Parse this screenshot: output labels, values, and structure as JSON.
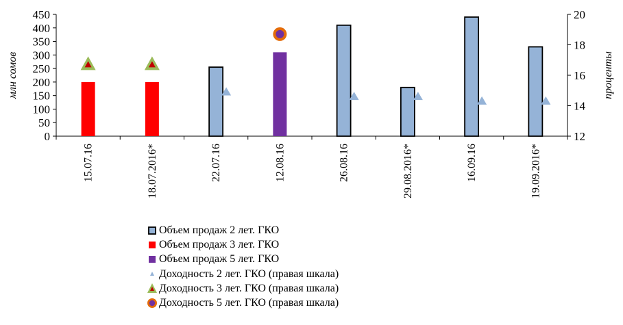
{
  "chart_data": {
    "type": "bar",
    "categories": [
      "15.07.16",
      "18.07.2016*",
      "22.07.16",
      "12.08.16",
      "26.08.16",
      "29.08.2016*",
      "16.09.16",
      "19.09.2016*"
    ],
    "ylabel": "млн  сомов",
    "y2label": "проценты",
    "ylim": [
      0,
      450
    ],
    "y_ticks": [
      0,
      50,
      100,
      150,
      200,
      250,
      300,
      350,
      400,
      450
    ],
    "y2lim": [
      12,
      20
    ],
    "y2_ticks": [
      12,
      14,
      16,
      18,
      20
    ],
    "grid": false,
    "legend_position": "bottom",
    "series": [
      {
        "name": "Объем продаж 2 лет. ГКО",
        "kind": "bar",
        "axis": "left",
        "color": "#95b3d7",
        "values": [
          null,
          null,
          255,
          null,
          410,
          180,
          440,
          330
        ]
      },
      {
        "name": "Объем продаж 3 лет. ГКО",
        "kind": "bar",
        "axis": "left",
        "color": "#ff0000",
        "values": [
          200,
          200,
          null,
          null,
          null,
          null,
          null,
          null
        ]
      },
      {
        "name": "Объем продаж 5 лет. ГКО",
        "kind": "bar",
        "axis": "left",
        "color": "#7030a0",
        "values": [
          null,
          null,
          null,
          310,
          null,
          null,
          null,
          null
        ]
      },
      {
        "name": "Доходность 2 лет. ГКО (правая шкала)",
        "kind": "marker",
        "axis": "right",
        "color": "#95b3d7",
        "values": [
          null,
          null,
          14.9,
          null,
          14.6,
          14.6,
          14.3,
          14.3
        ]
      },
      {
        "name": "Доходность 3 лет. ГКО (правая шкала)",
        "kind": "marker",
        "axis": "right",
        "color": "#c00000",
        "values": [
          16.7,
          16.7,
          null,
          null,
          null,
          null,
          null,
          null
        ]
      },
      {
        "name": "Доходность 5 лет. ГКО (правая шкала)",
        "kind": "marker",
        "axis": "right",
        "color": "#7030a0",
        "values": [
          null,
          null,
          null,
          18.7,
          null,
          null,
          null,
          null
        ]
      }
    ]
  }
}
